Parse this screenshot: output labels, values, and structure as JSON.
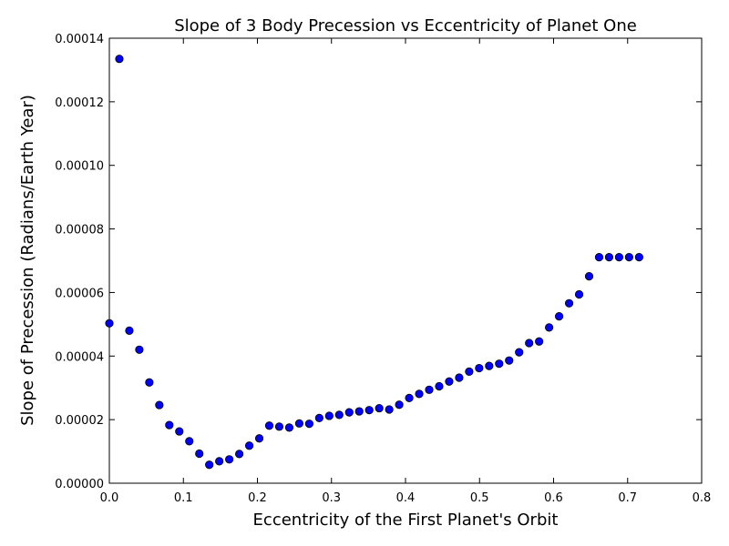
{
  "chart_data": {
    "type": "scatter",
    "title": "Slope of 3 Body Precession vs Eccentricity of Planet One",
    "xlabel": "Eccentricity of the First Planet's Orbit",
    "ylabel": "Slope of Precession (Radians/Earth Year)",
    "xlim": [
      0.0,
      0.8
    ],
    "ylim": [
      0.0,
      0.00014
    ],
    "xticks": [
      "0.0",
      "0.1",
      "0.2",
      "0.3",
      "0.4",
      "0.5",
      "0.6",
      "0.7",
      "0.8"
    ],
    "yticks": [
      "0.00000",
      "0.00002",
      "0.00004",
      "0.00006",
      "0.00008",
      "0.00010",
      "0.00012",
      "0.00014"
    ],
    "grid": false,
    "marker_color": "#0000ff",
    "series": [
      {
        "x": [
          0.0,
          0.0135,
          0.027,
          0.0405,
          0.054,
          0.0675,
          0.081,
          0.0945,
          0.108,
          0.1215,
          0.135,
          0.1485,
          0.162,
          0.1755,
          0.189,
          0.2025,
          0.216,
          0.2295,
          0.243,
          0.2565,
          0.27,
          0.2835,
          0.297,
          0.3105,
          0.324,
          0.3375,
          0.351,
          0.3645,
          0.378,
          0.3915,
          0.405,
          0.4185,
          0.432,
          0.4455,
          0.459,
          0.4725,
          0.486,
          0.4995,
          0.513,
          0.5265,
          0.54,
          0.5535,
          0.567,
          0.5805,
          0.594,
          0.6075,
          0.621,
          0.6345,
          0.648,
          0.6615,
          0.675,
          0.6885,
          0.702,
          0.7155
        ],
        "y": [
          5.03e-05,
          0.0001335,
          4.8e-05,
          4.2e-05,
          3.17e-05,
          2.46e-05,
          1.83e-05,
          1.63e-05,
          1.32e-05,
          9.3e-06,
          5.8e-06,
          6.9e-06,
          7.5e-06,
          9.2e-06,
          1.18e-05,
          1.41e-05,
          1.81e-05,
          1.78e-05,
          1.75e-05,
          1.88e-05,
          1.87e-05,
          2.05e-05,
          2.12e-05,
          2.15e-05,
          2.23e-05,
          2.26e-05,
          2.3e-05,
          2.36e-05,
          2.32e-05,
          2.47e-05,
          2.68e-05,
          2.81e-05,
          2.94e-05,
          3.05e-05,
          3.2e-05,
          3.32e-05,
          3.51e-05,
          3.62e-05,
          3.69e-05,
          3.76e-05,
          3.86e-05,
          4.12e-05,
          4.41e-05,
          4.46e-05,
          4.9e-05,
          5.25e-05,
          5.66e-05,
          5.94e-05,
          6.51e-05,
          7.11e-05,
          7.11e-05,
          7.11e-05,
          7.11e-05,
          7.11e-05
        ]
      }
    ]
  }
}
